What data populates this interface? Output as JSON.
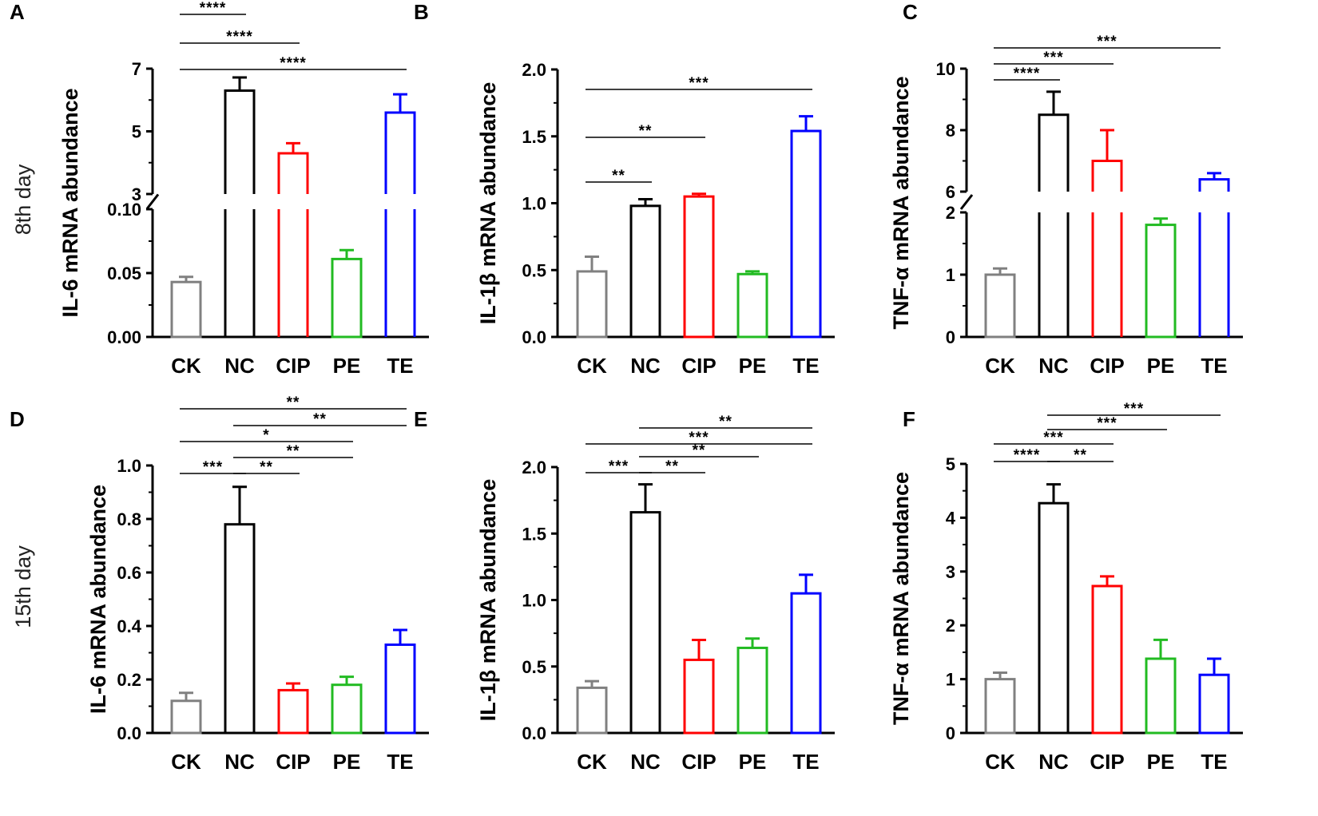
{
  "row_labels": [
    "8th day",
    "15th day"
  ],
  "chart_data": [
    {
      "panel": "A",
      "type": "bar",
      "row": 0,
      "broken_axis": true,
      "categories": [
        "CK",
        "NC",
        "CIP",
        "PE",
        "TE"
      ],
      "colors": [
        "#808080",
        "#000000",
        "#ff0000",
        "#22bb22",
        "#0000ff"
      ],
      "ylabel": "IL-6 mRNA abundance",
      "lower": {
        "range": [
          0,
          0.1
        ],
        "ticks": [
          0,
          0.05,
          0.1
        ],
        "tick_labels": [
          "0.00",
          "0.05",
          "0.10"
        ]
      },
      "upper": {
        "range": [
          3,
          7
        ],
        "ticks": [
          3,
          5,
          7
        ],
        "tick_labels": [
          "3",
          "5",
          "7"
        ]
      },
      "values": [
        0.043,
        6.3,
        4.3,
        0.061,
        5.6
      ],
      "errors": [
        0.004,
        0.42,
        0.32,
        0.007,
        0.58
      ],
      "significance": [
        {
          "from": 0,
          "to": 1,
          "label": "****"
        },
        {
          "from": 0,
          "to": 2,
          "label": "****"
        },
        {
          "from": 0,
          "to": 4,
          "label": "****"
        }
      ]
    },
    {
      "panel": "B",
      "type": "bar",
      "row": 0,
      "broken_axis": false,
      "categories": [
        "CK",
        "NC",
        "CIP",
        "PE",
        "TE"
      ],
      "colors": [
        "#808080",
        "#000000",
        "#ff0000",
        "#22bb22",
        "#0000ff"
      ],
      "ylabel": "IL-1β mRNA abundance",
      "ylim": [
        0,
        2.0
      ],
      "ticks": [
        0,
        0.5,
        1.0,
        1.5,
        2.0
      ],
      "tick_labels": [
        "0.0",
        "0.5",
        "1.0",
        "1.5",
        "2.0"
      ],
      "values": [
        0.49,
        0.98,
        1.05,
        0.47,
        1.54
      ],
      "errors": [
        0.11,
        0.05,
        0.02,
        0.02,
        0.11
      ],
      "significance": [
        {
          "from": 0,
          "to": 1,
          "label": "**"
        },
        {
          "from": 0,
          "to": 2,
          "label": "**"
        },
        {
          "from": 0,
          "to": 4,
          "label": "***"
        }
      ]
    },
    {
      "panel": "C",
      "type": "bar",
      "row": 0,
      "broken_axis": true,
      "categories": [
        "CK",
        "NC",
        "CIP",
        "PE",
        "TE"
      ],
      "colors": [
        "#808080",
        "#000000",
        "#ff0000",
        "#22bb22",
        "#0000ff"
      ],
      "ylabel": "TNF-α mRNA abundance",
      "lower": {
        "range": [
          0,
          2
        ],
        "ticks": [
          0,
          1,
          2
        ],
        "tick_labels": [
          "0",
          "1",
          "2"
        ]
      },
      "upper": {
        "range": [
          6,
          10
        ],
        "ticks": [
          6,
          8,
          10
        ],
        "tick_labels": [
          "6",
          "8",
          "10"
        ]
      },
      "values": [
        1.0,
        8.5,
        7.0,
        1.8,
        6.4
      ],
      "errors": [
        0.1,
        0.75,
        1.0,
        0.1,
        0.2
      ],
      "significance": [
        {
          "from": 0,
          "to": 1,
          "label": "****"
        },
        {
          "from": 0,
          "to": 2,
          "label": "***"
        },
        {
          "from": 0,
          "to": 4,
          "label": "***"
        }
      ]
    },
    {
      "panel": "D",
      "type": "bar",
      "row": 1,
      "broken_axis": false,
      "categories": [
        "CK",
        "NC",
        "CIP",
        "PE",
        "TE"
      ],
      "colors": [
        "#808080",
        "#000000",
        "#ff0000",
        "#22bb22",
        "#0000ff"
      ],
      "ylabel": "IL-6 mRNA abundance",
      "ylim": [
        0,
        1.0
      ],
      "ticks": [
        0,
        0.2,
        0.4,
        0.6,
        0.8,
        1.0
      ],
      "tick_labels": [
        "0.0",
        "0.2",
        "0.4",
        "0.6",
        "0.8",
        "1.0"
      ],
      "values": [
        0.12,
        0.78,
        0.16,
        0.18,
        0.33
      ],
      "errors": [
        0.03,
        0.14,
        0.025,
        0.03,
        0.055
      ],
      "significance": [
        {
          "from": 0,
          "to": 1,
          "label": "***"
        },
        {
          "from": 1,
          "to": 2,
          "label": "**"
        },
        {
          "from": 1,
          "to": 3,
          "label": "**"
        },
        {
          "from": 0,
          "to": 3,
          "label": "*"
        },
        {
          "from": 1,
          "to": 4,
          "label": "**"
        },
        {
          "from": 0,
          "to": 4,
          "label": "**"
        }
      ]
    },
    {
      "panel": "E",
      "type": "bar",
      "row": 1,
      "broken_axis": false,
      "categories": [
        "CK",
        "NC",
        "CIP",
        "PE",
        "TE"
      ],
      "colors": [
        "#808080",
        "#000000",
        "#ff0000",
        "#22bb22",
        "#0000ff"
      ],
      "ylabel": "IL-1β mRNA abundance",
      "ylim": [
        0,
        2.0
      ],
      "ticks": [
        0,
        0.5,
        1.0,
        1.5,
        2.0
      ],
      "tick_labels": [
        "0.0",
        "0.5",
        "1.0",
        "1.5",
        "2.0"
      ],
      "values": [
        0.34,
        1.66,
        0.55,
        0.64,
        1.05
      ],
      "errors": [
        0.05,
        0.21,
        0.15,
        0.07,
        0.14
      ],
      "significance": [
        {
          "from": 0,
          "to": 1,
          "label": "***"
        },
        {
          "from": 1,
          "to": 2,
          "label": "**"
        },
        {
          "from": 1,
          "to": 3,
          "label": "**"
        },
        {
          "from": 0,
          "to": 4,
          "label": "***"
        },
        {
          "from": 1,
          "to": 4,
          "label": "**"
        }
      ]
    },
    {
      "panel": "F",
      "type": "bar",
      "row": 1,
      "broken_axis": false,
      "categories": [
        "CK",
        "NC",
        "CIP",
        "PE",
        "TE"
      ],
      "colors": [
        "#808080",
        "#000000",
        "#ff0000",
        "#22bb22",
        "#0000ff"
      ],
      "ylabel": "TNF-α mRNA abundance",
      "ylim": [
        0,
        5
      ],
      "ticks": [
        0,
        1,
        2,
        3,
        4,
        5
      ],
      "tick_labels": [
        "0",
        "1",
        "2",
        "3",
        "4",
        "5"
      ],
      "values": [
        1.0,
        4.27,
        2.73,
        1.38,
        1.08
      ],
      "errors": [
        0.12,
        0.35,
        0.18,
        0.35,
        0.3
      ],
      "significance": [
        {
          "from": 0,
          "to": 1,
          "label": "****"
        },
        {
          "from": 1,
          "to": 2,
          "label": "**"
        },
        {
          "from": 0,
          "to": 2,
          "label": "***"
        },
        {
          "from": 1,
          "to": 3,
          "label": "***"
        },
        {
          "from": 1,
          "to": 4,
          "label": "***"
        }
      ]
    }
  ]
}
